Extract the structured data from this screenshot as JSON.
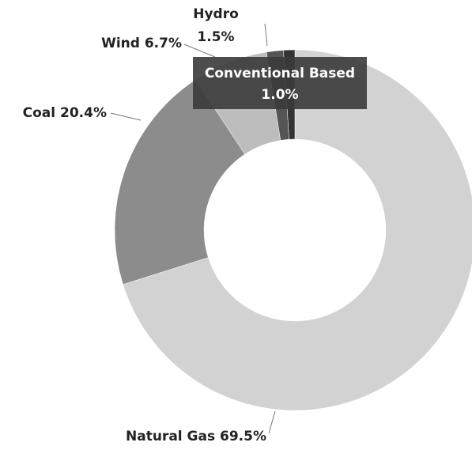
{
  "chart_data": {
    "type": "donut",
    "categories": [
      "Natural Gas",
      "Coal",
      "Wind",
      "Hydro",
      "Conventional Based"
    ],
    "values": [
      69.5,
      20.4,
      6.7,
      1.5,
      1.0
    ],
    "value_labels": [
      "69.5%",
      "20.4%",
      "6.7%",
      "1.5%",
      "1.0%"
    ],
    "colors": [
      "#d2d2d2",
      "#8c8c8c",
      "#bdbdbd",
      "#555555",
      "#333333"
    ]
  }
}
